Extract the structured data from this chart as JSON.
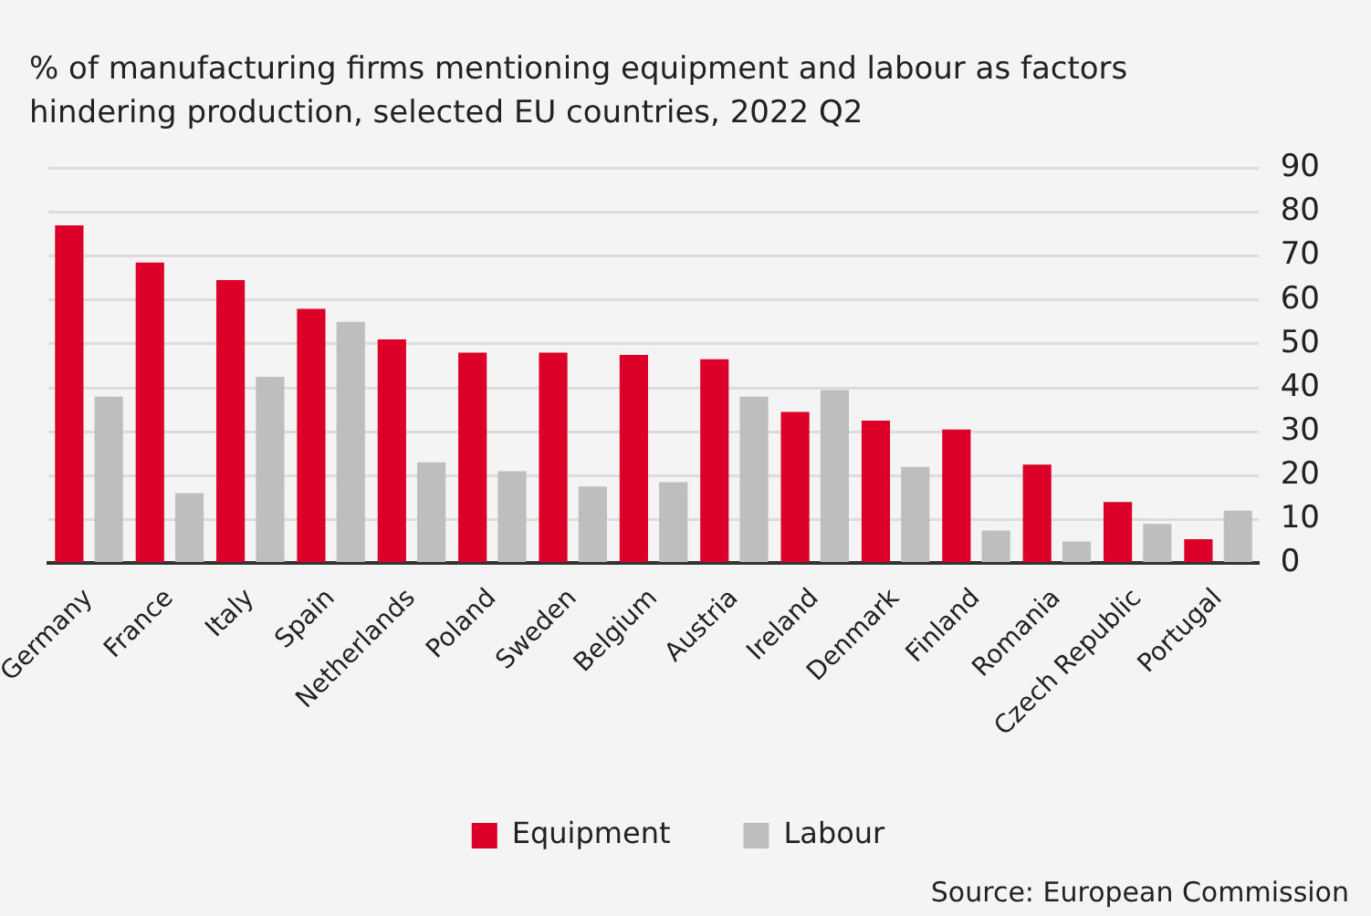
{
  "chart_data": {
    "type": "bar",
    "title": "% of manufacturing firms mentioning equipment and labour as factors hindering production, selected EU countries, 2022 Q2",
    "categories": [
      "Germany",
      "France",
      "Italy",
      "Spain",
      "Netherlands",
      "Poland",
      "Sweden",
      "Belgium",
      "Austria",
      "Ireland",
      "Denmark",
      "Finland",
      "Romania",
      "Czech Republic",
      "Portugal"
    ],
    "series": [
      {
        "name": "Equipment",
        "color": "#dc0028",
        "values": [
          77,
          68.5,
          64.5,
          58,
          51,
          48,
          48,
          47.5,
          46.5,
          34.5,
          32.5,
          30.5,
          22.5,
          14,
          5.5
        ]
      },
      {
        "name": "Labour",
        "color": "#bebebe",
        "values": [
          38,
          16,
          42.5,
          55,
          23,
          21,
          17.5,
          18.5,
          38,
          39.5,
          22,
          7.5,
          5,
          9,
          12
        ]
      }
    ],
    "ylim": [
      0,
      90
    ],
    "yticks": [
      0,
      10,
      20,
      30,
      40,
      50,
      60,
      70,
      80,
      90
    ],
    "grid": "y",
    "legend": "bottom",
    "annotations": [
      "Source: European Commission"
    ]
  }
}
